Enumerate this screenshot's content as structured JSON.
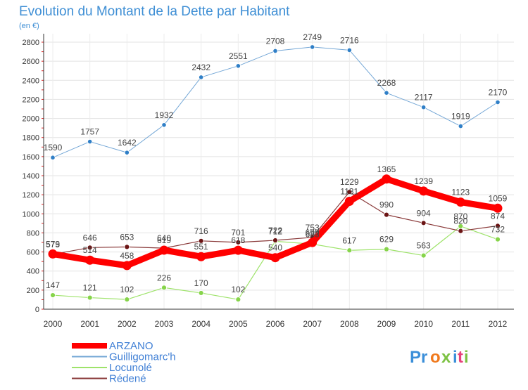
{
  "chart_data": {
    "type": "line",
    "title": "Evolution du Montant de la Dette par Habitant",
    "subtitle": "(en €)",
    "categories": [
      "2000",
      "2001",
      "2002",
      "2003",
      "2004",
      "2005",
      "2006",
      "2007",
      "2008",
      "2009",
      "2010",
      "2011",
      "2012"
    ],
    "ylim": [
      0,
      2800
    ],
    "yticks": [
      0,
      200,
      400,
      600,
      800,
      1000,
      1200,
      1400,
      1600,
      1800,
      2000,
      2200,
      2400,
      2600,
      2800
    ],
    "grid": true,
    "legend_position": "bottom-left",
    "series": [
      {
        "name": "ARZANO",
        "color": "#ff0000",
        "marker_color": "#ff0000",
        "values": [
          579,
          514,
          458,
          619,
          551,
          618,
          540,
          699,
          1131,
          1365,
          1239,
          1123,
          1059
        ]
      },
      {
        "name": "Guilligomarc'h",
        "color": "#74a7d6",
        "marker_color": "#2f7fc7",
        "values": [
          1590,
          1757,
          1642,
          1932,
          2432,
          2551,
          2708,
          2749,
          2716,
          2268,
          2117,
          1919,
          2170
        ]
      },
      {
        "name": "Locunolé",
        "color": "#9ee36a",
        "marker_color": "#86d44a",
        "values": [
          147,
          121,
          102,
          226,
          170,
          102,
          712,
          683,
          617,
          629,
          563,
          870,
          732
        ]
      },
      {
        "name": "Rédené",
        "color": "#8a3a3a",
        "marker_color": "#6b1414",
        "values": [
          575,
          646,
          653,
          640,
          716,
          701,
          722,
          753,
          1229,
          990,
          904,
          820,
          874
        ]
      }
    ]
  },
  "logo": {
    "text": "Proxiti",
    "letter_colors": [
      "#3b8fd9",
      "#3b8fd9",
      "#f07a1e",
      "#7cc243",
      "#3b8fd9",
      "#e8417a",
      "#7cc243"
    ]
  }
}
